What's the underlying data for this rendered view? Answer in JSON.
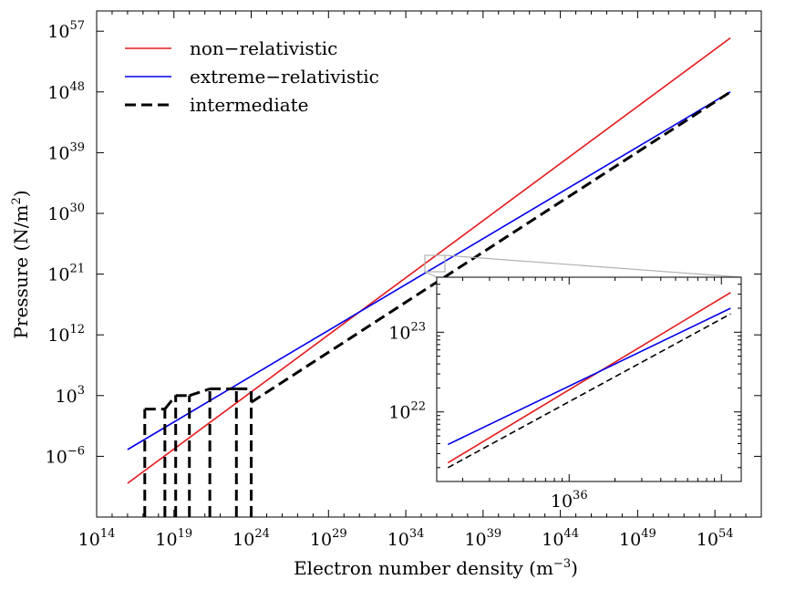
{
  "chart_data": {
    "type": "line",
    "title": "",
    "xlabel": "Electron number density (m",
    "xlabel_exp": "−3",
    "xlabel_end": ")",
    "ylabel": "Pressure (N/m",
    "ylabel_exp": "2",
    "ylabel_end": ")",
    "xscale": "log",
    "yscale": "log",
    "xlim": [
      100000000000000.0,
      1e+57
    ],
    "ylim": [
      1e-15,
      1e+60
    ],
    "x_ticks": [
      {
        "base": "10",
        "exp": "14",
        "value": 100000000000000.0
      },
      {
        "base": "10",
        "exp": "19",
        "value": 1e+19
      },
      {
        "base": "10",
        "exp": "24",
        "value": 1e+24
      },
      {
        "base": "10",
        "exp": "29",
        "value": 1e+29
      },
      {
        "base": "10",
        "exp": "34",
        "value": 1e+34
      },
      {
        "base": "10",
        "exp": "39",
        "value": 1e+39
      },
      {
        "base": "10",
        "exp": "44",
        "value": 1e+44
      },
      {
        "base": "10",
        "exp": "49",
        "value": 1e+49
      },
      {
        "base": "10",
        "exp": "54",
        "value": 1e+54
      }
    ],
    "y_ticks": [
      {
        "base": "10",
        "exp": "−6",
        "value": 1e-06
      },
      {
        "base": "10",
        "exp": "3",
        "value": 1000.0
      },
      {
        "base": "10",
        "exp": "12",
        "value": 1000000000000.0
      },
      {
        "base": "10",
        "exp": "21",
        "value": 1e+21
      },
      {
        "base": "10",
        "exp": "30",
        "value": 1e+30
      },
      {
        "base": "10",
        "exp": "39",
        "value": 1e+39
      },
      {
        "base": "10",
        "exp": "48",
        "value": 1e+48
      },
      {
        "base": "10",
        "exp": "57",
        "value": 1e+57
      }
    ],
    "legend_position": "top-left",
    "series": [
      {
        "name": "non−relativistic",
        "color": "#e41a1c",
        "style": "solid",
        "x": [
          1e+16,
          1e+55
        ],
        "y": [
          1e-10,
          1e+56
        ]
      },
      {
        "name": "extreme−relativistic",
        "color": "#0000ee",
        "style": "solid",
        "x": [
          1e+16,
          1e+55
        ],
        "y": [
          1e-05,
          1e+48
        ]
      },
      {
        "name": "intermediate",
        "color": "#000000",
        "style": "dashed",
        "x": [
          1e+24,
          1e+55
        ],
        "y": [
          100.0,
          1e+48
        ],
        "low_density_noise_x": [
          1.3e+17,
          2.6e+18,
          1.3e+19,
          1e+20,
          2.1e+21,
          1.1e+23,
          1e+24
        ],
        "low_density_noise_y": [
          10.0,
          10.0,
          1000.0,
          1000.0,
          10000.0,
          10000.0,
          10000.0
        ]
      }
    ],
    "inset": {
      "xscale": "log",
      "yscale": "log",
      "x_ticks": [
        {
          "base": "10",
          "exp": "36",
          "value": 1e+36
        }
      ],
      "y_ticks": [
        {
          "base": "10",
          "exp": "22",
          "value": 1e+22
        },
        {
          "base": "10",
          "exp": "23",
          "value": 1e+23
        }
      ],
      "series": [
        {
          "name": "non−relativistic",
          "x": [
            1.6e+35,
            1.15e+37
          ],
          "y": [
            2.3e+21,
            3.15e+23
          ]
        },
        {
          "name": "extreme−relativistic",
          "x": [
            1.6e+35,
            1.15e+37
          ],
          "y": [
            3.9e+21,
            2e+23
          ]
        },
        {
          "name": "intermediate",
          "x": [
            1.6e+35,
            1.15e+37
          ],
          "y": [
            2e+21,
            1.7e+23
          ]
        }
      ]
    }
  }
}
